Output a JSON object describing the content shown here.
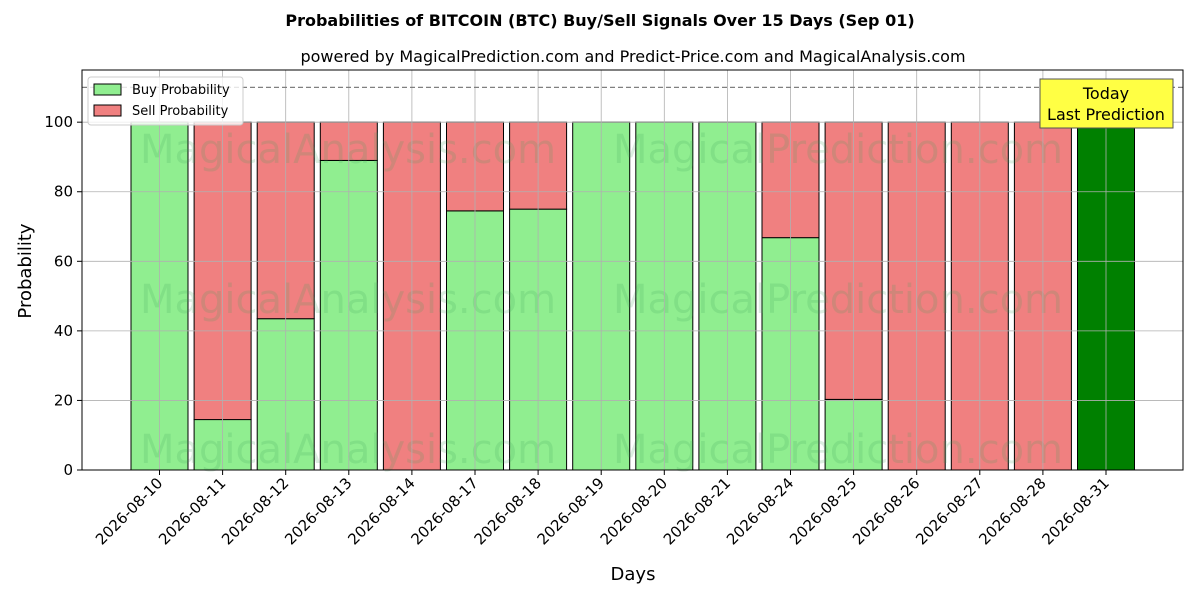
{
  "chart_data": {
    "type": "bar",
    "stacked": true,
    "title": "Probabilities of BITCOIN (BTC) Buy/Sell Signals Over 15 Days (Sep 01)",
    "subtitle": "powered by MagicalPrediction.com and Predict-Price.com and MagicalAnalysis.com",
    "xlabel": "Days",
    "ylabel": "Probability",
    "ylim": [
      0,
      115
    ],
    "yticks": [
      0,
      20,
      40,
      60,
      80,
      100
    ],
    "reference_line": 110,
    "grid": true,
    "legend_position": "top-left",
    "categories": [
      "2026-08-10",
      "2026-08-11",
      "2026-08-12",
      "2026-08-13",
      "2026-08-14",
      "2026-08-17",
      "2026-08-18",
      "2026-08-19",
      "2026-08-20",
      "2026-08-21",
      "2026-08-24",
      "2026-08-25",
      "2026-08-26",
      "2026-08-27",
      "2026-08-28",
      "2026-08-31"
    ],
    "series": [
      {
        "name": "Buy Probability",
        "color": "#90EE90",
        "values": [
          100,
          14.5,
          43.5,
          89,
          0,
          74.5,
          75,
          100,
          100,
          100,
          66.8,
          20.3,
          0,
          0,
          0,
          100
        ]
      },
      {
        "name": "Sell Probability",
        "color": "#F08080",
        "values": [
          0,
          85.5,
          56.5,
          11,
          100,
          25.5,
          25,
          0,
          0,
          0,
          33.2,
          79.7,
          100,
          100,
          100,
          0
        ]
      }
    ],
    "highlight": {
      "index": 15,
      "color": "#008000"
    },
    "annotation": {
      "line1": "Today",
      "line2": "Last Prediction",
      "color": "#FFFF44"
    },
    "watermarks": [
      "MagicalAnalysis.com",
      "MagicalPrediction.com"
    ]
  }
}
